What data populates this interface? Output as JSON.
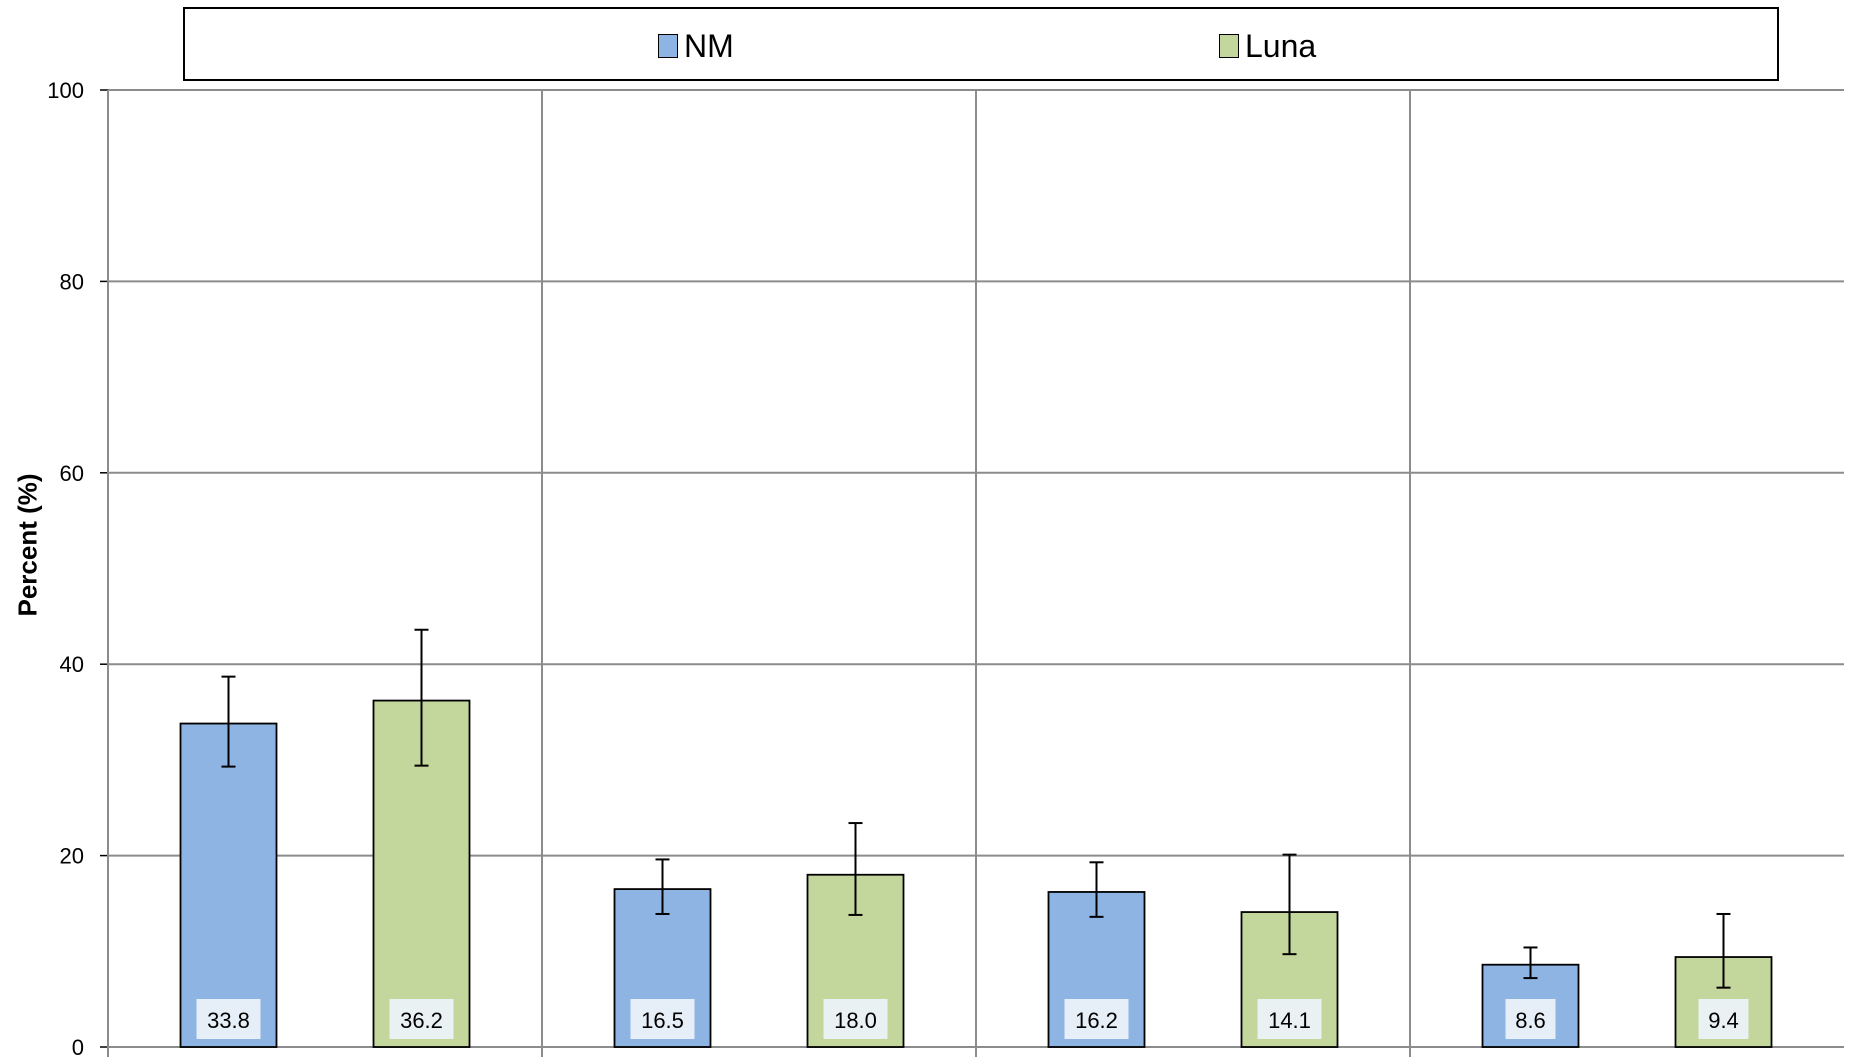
{
  "chart_data": {
    "type": "bar",
    "categories": [
      "",
      "",
      "",
      ""
    ],
    "series": [
      {
        "name": "NM",
        "color": "#8eb4e3",
        "values": [
          33.8,
          16.5,
          16.2,
          8.6
        ],
        "error_low": [
          29.3,
          13.9,
          13.6,
          7.2
        ],
        "error_high": [
          38.7,
          19.6,
          19.3,
          10.4
        ]
      },
      {
        "name": "Luna",
        "color": "#c3d69b",
        "values": [
          36.2,
          18.0,
          14.1,
          9.4
        ],
        "error_low": [
          29.4,
          13.8,
          9.7,
          6.2
        ],
        "error_high": [
          43.6,
          23.4,
          20.1,
          13.9
        ]
      }
    ],
    "data_labels": [
      [
        "33.8",
        "16.5",
        "16.2",
        "8.6"
      ],
      [
        "36.2",
        "18.0",
        "14.1",
        "9.4"
      ]
    ],
    "ylabel": "Percent (%)",
    "ylim": [
      0,
      100
    ],
    "yticks": [
      "0",
      "20",
      "40",
      "60",
      "80",
      "100"
    ],
    "grid": true,
    "legend_position": "top"
  }
}
